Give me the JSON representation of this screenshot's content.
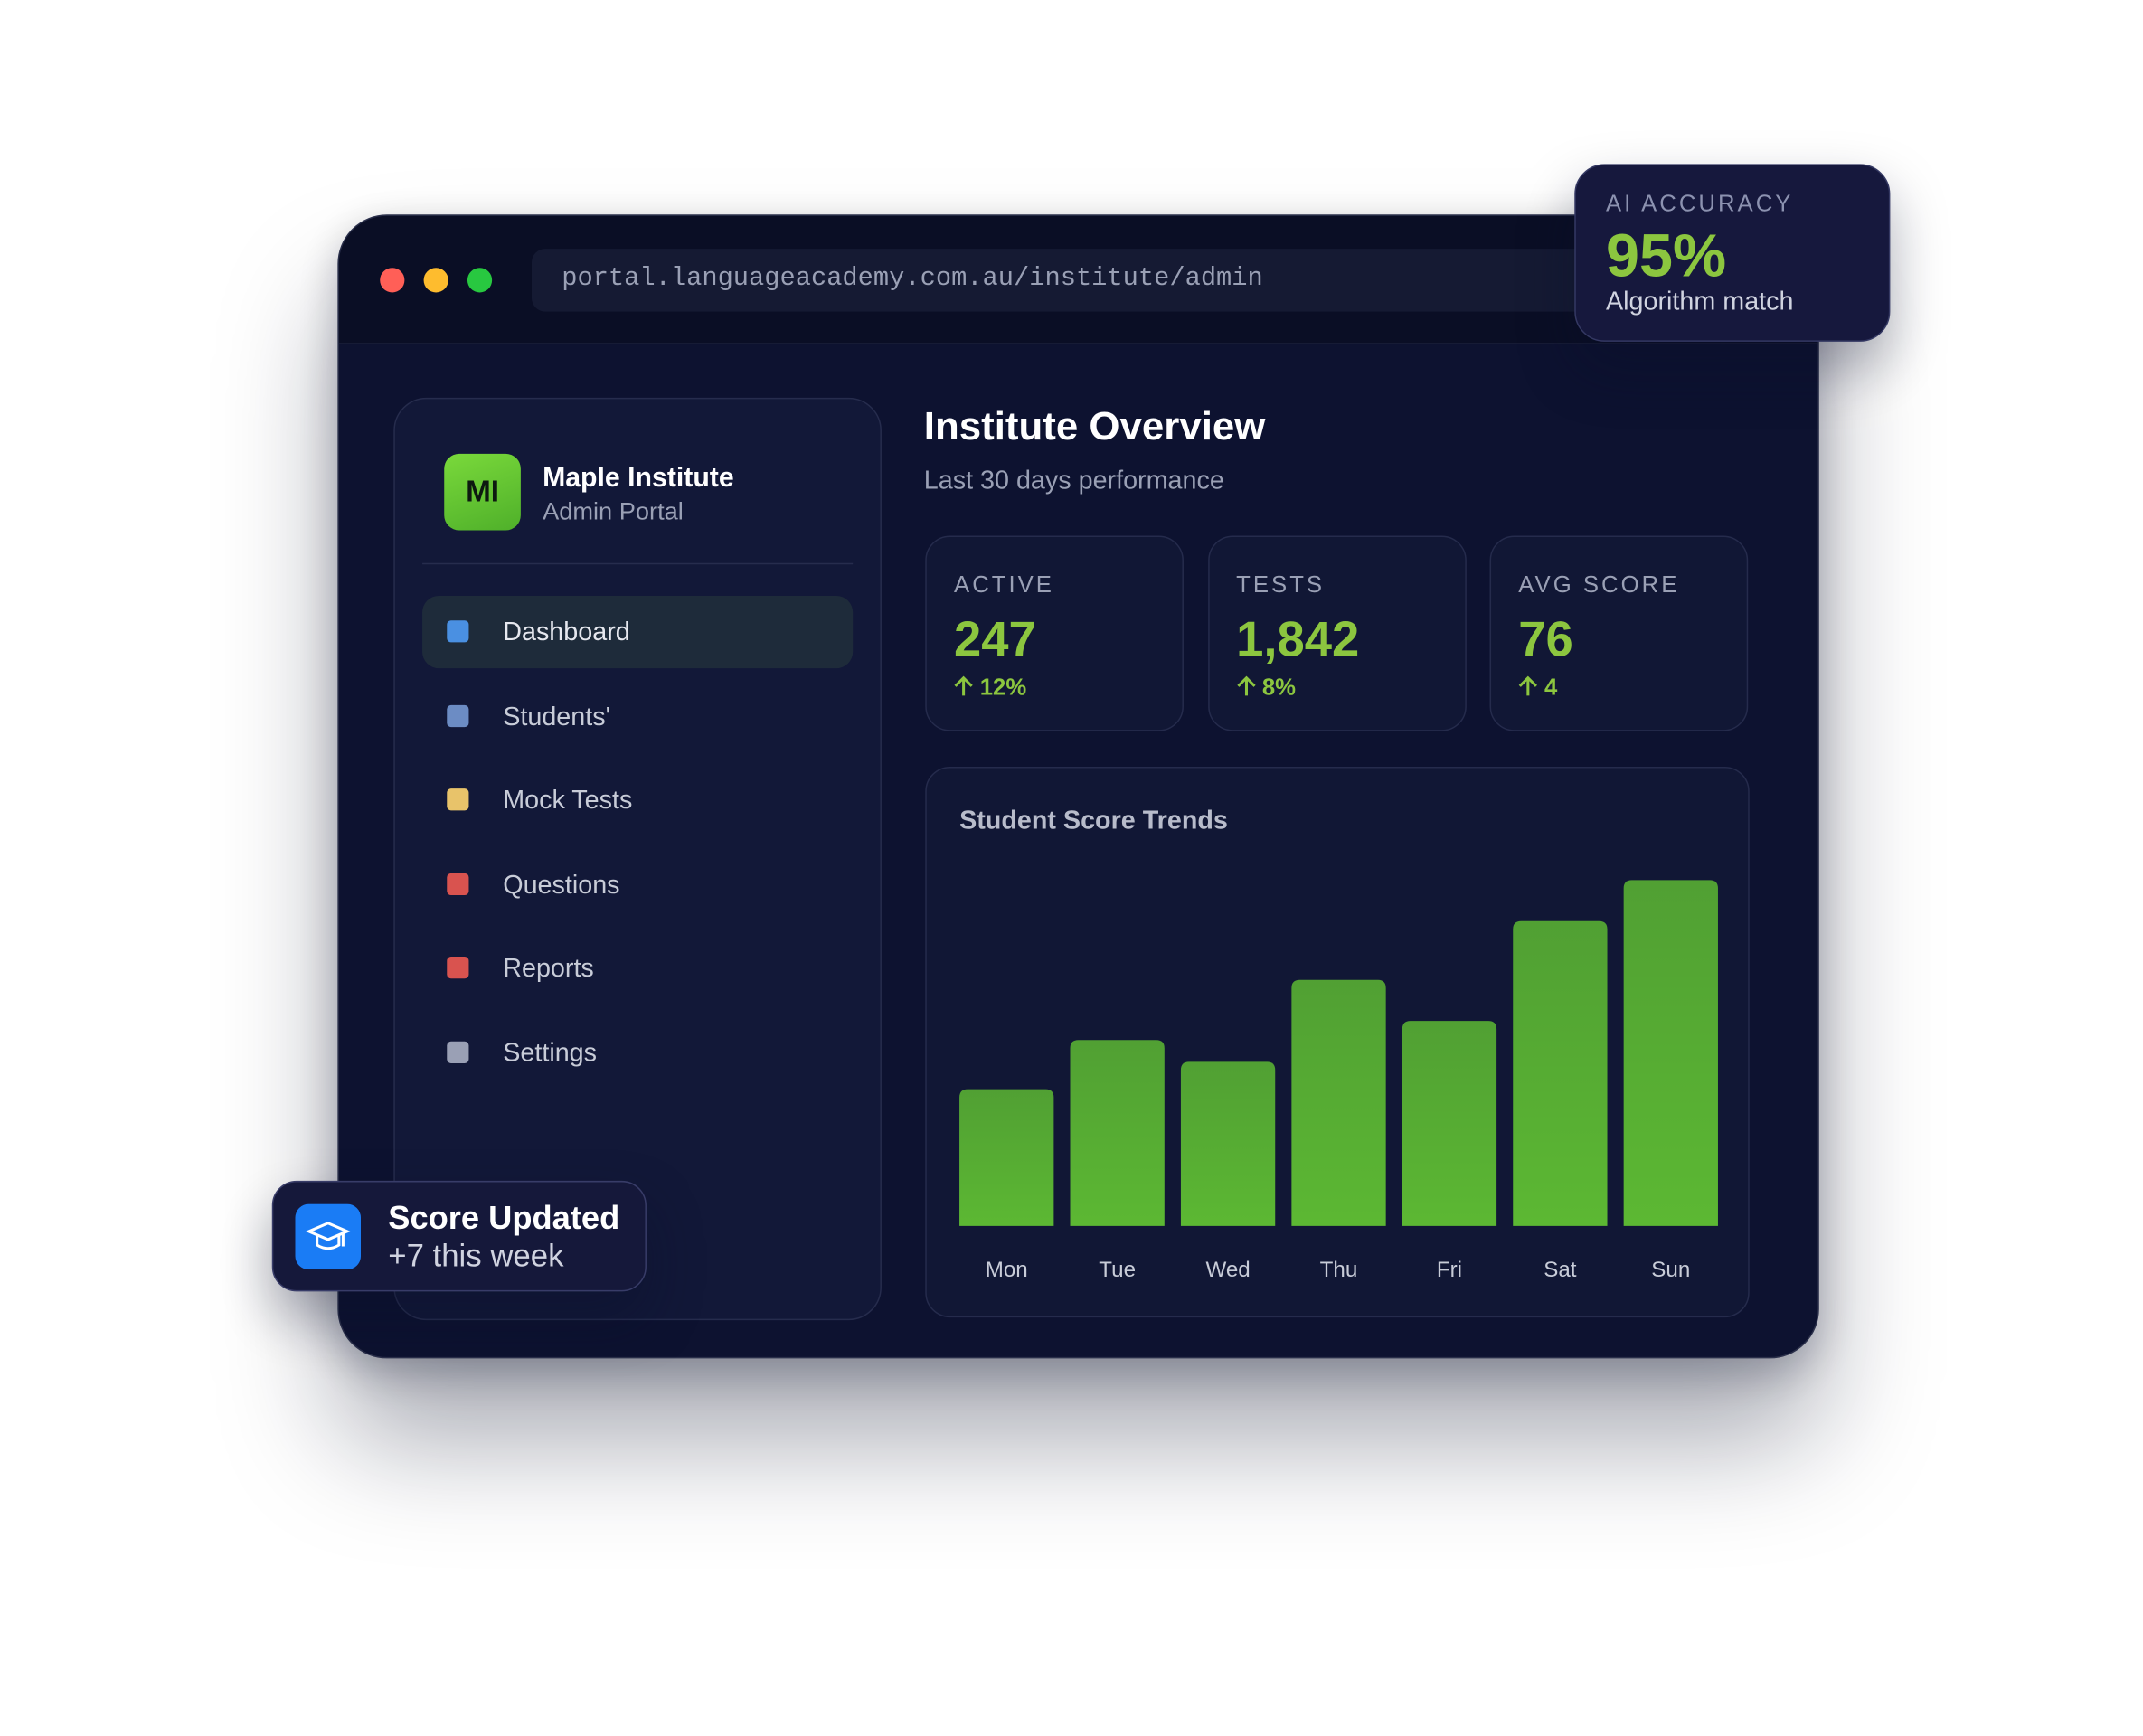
{
  "browser": {
    "url": "portal.languageacademy.com.au/institute/admin"
  },
  "ai_card": {
    "label": "AI ACCURACY",
    "value": "95%",
    "caption": "Algorithm match"
  },
  "sidebar": {
    "logo": "MI",
    "name": "Maple Institute",
    "role": "Admin Portal",
    "nav": [
      "Dashboard",
      "Students'",
      "Mock Tests",
      "Questions",
      "Reports",
      "Settings"
    ]
  },
  "header": {
    "title": "Institute Overview",
    "subtitle": "Last 30 days performance"
  },
  "stats": [
    {
      "label": "ACTIVE",
      "value": "247",
      "change": "12%"
    },
    {
      "label": "TESTS",
      "value": "1,842",
      "change": "8%"
    },
    {
      "label": "AVG SCORE",
      "value": "76",
      "change": "4"
    }
  ],
  "chart_data": {
    "type": "bar",
    "title": "Student Score Trends",
    "categories": [
      "Mon",
      "Tue",
      "Wed",
      "Thu",
      "Fri",
      "Sat",
      "Sun"
    ],
    "values": [
      100,
      136,
      120,
      180,
      150,
      223,
      253
    ],
    "color": "#5cb833",
    "ylim": [
      0,
      260
    ]
  },
  "toast": {
    "title": "Score Updated",
    "subtitle": "+7 this week"
  }
}
